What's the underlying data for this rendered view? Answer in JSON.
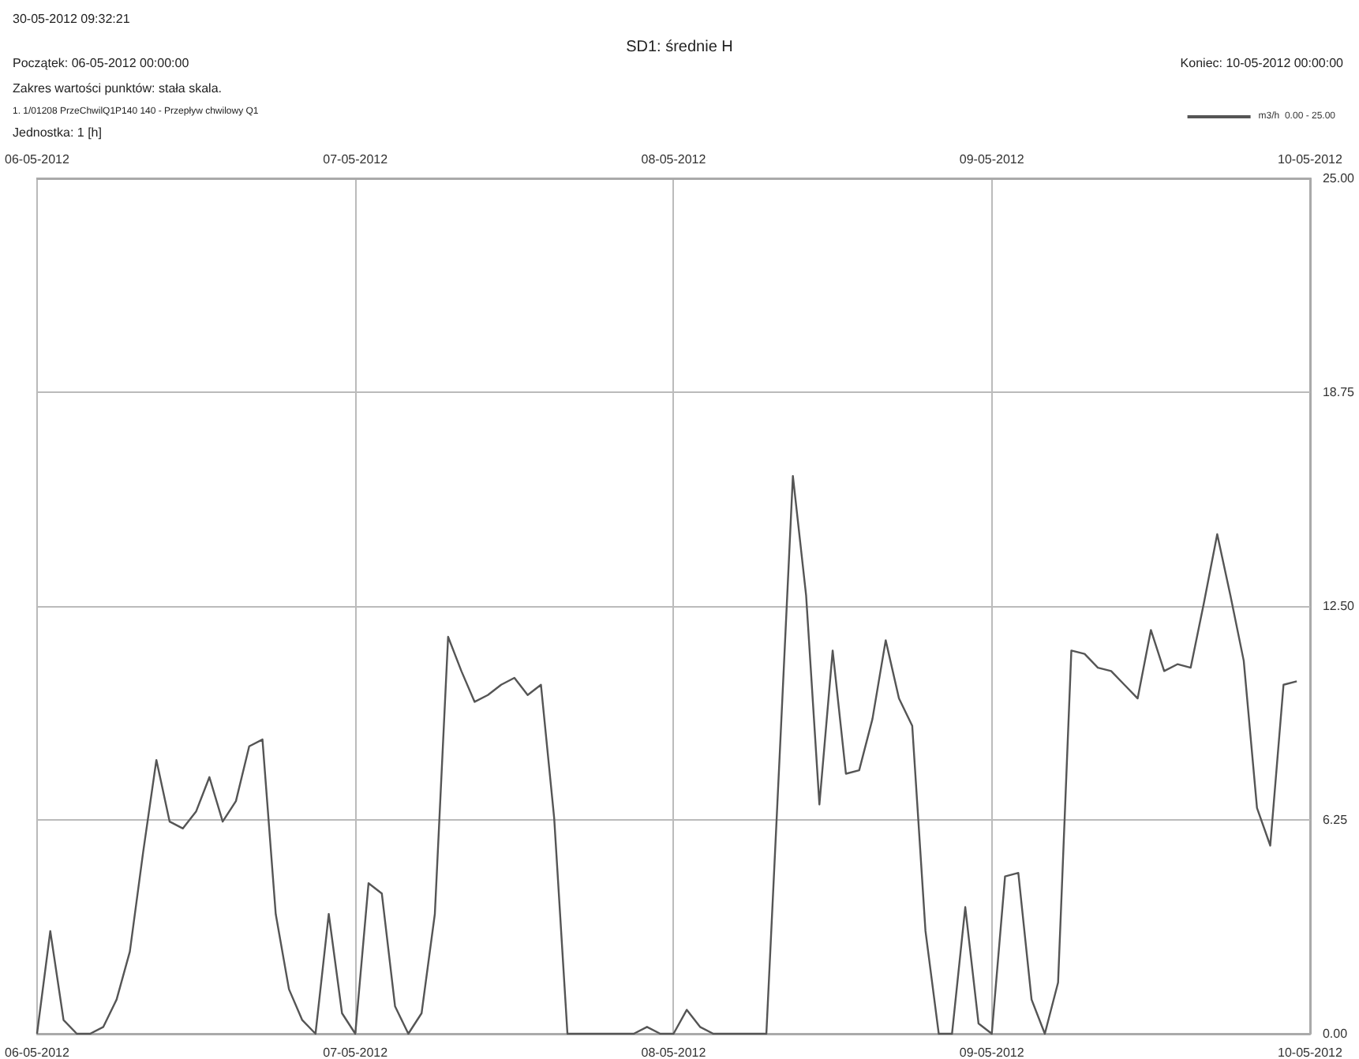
{
  "chart_data": {
    "type": "line",
    "title": "SD1: średnie H",
    "annotations": [
      "30-05-2012 09:32:21",
      "Początek: 06-05-2012 00:00:00",
      "Koniec: 10-05-2012 00:00:00",
      "Zakres wartości punktów: stała skala.",
      "1. 1/01208 PrzeChwilQ1P140 140 - Przepływ chwilowy Q1",
      "Jednostka: 1 [h]"
    ],
    "x": [
      "2012-05-06T00:00",
      "2012-05-06T01:00",
      "2012-05-06T02:00",
      "2012-05-06T03:00",
      "2012-05-06T04:00",
      "2012-05-06T05:00",
      "2012-05-06T06:00",
      "2012-05-06T07:00",
      "2012-05-06T08:00",
      "2012-05-06T09:00",
      "2012-05-06T10:00",
      "2012-05-06T11:00",
      "2012-05-06T12:00",
      "2012-05-06T13:00",
      "2012-05-06T14:00",
      "2012-05-06T15:00",
      "2012-05-06T16:00",
      "2012-05-06T17:00",
      "2012-05-06T18:00",
      "2012-05-06T19:00",
      "2012-05-06T20:00",
      "2012-05-06T21:00",
      "2012-05-06T22:00",
      "2012-05-06T23:00",
      "2012-05-07T00:00",
      "2012-05-07T01:00",
      "2012-05-07T02:00",
      "2012-05-07T03:00",
      "2012-05-07T04:00",
      "2012-05-07T05:00",
      "2012-05-07T06:00",
      "2012-05-07T07:00",
      "2012-05-07T08:00",
      "2012-05-07T09:00",
      "2012-05-07T10:00",
      "2012-05-07T11:00",
      "2012-05-07T12:00",
      "2012-05-07T13:00",
      "2012-05-07T14:00",
      "2012-05-07T15:00",
      "2012-05-07T16:00",
      "2012-05-07T17:00",
      "2012-05-07T18:00",
      "2012-05-07T19:00",
      "2012-05-07T20:00",
      "2012-05-07T21:00",
      "2012-05-07T22:00",
      "2012-05-07T23:00",
      "2012-05-08T00:00",
      "2012-05-08T01:00",
      "2012-05-08T02:00",
      "2012-05-08T03:00",
      "2012-05-08T04:00",
      "2012-05-08T05:00",
      "2012-05-08T06:00",
      "2012-05-08T07:00",
      "2012-05-08T08:00",
      "2012-05-08T09:00",
      "2012-05-08T10:00",
      "2012-05-08T11:00",
      "2012-05-08T12:00",
      "2012-05-08T13:00",
      "2012-05-08T14:00",
      "2012-05-08T15:00",
      "2012-05-08T16:00",
      "2012-05-08T17:00",
      "2012-05-08T18:00",
      "2012-05-08T19:00",
      "2012-05-08T20:00",
      "2012-05-08T21:00",
      "2012-05-08T22:00",
      "2012-05-08T23:00",
      "2012-05-09T00:00",
      "2012-05-09T01:00",
      "2012-05-09T02:00",
      "2012-05-09T03:00",
      "2012-05-09T04:00",
      "2012-05-09T05:00",
      "2012-05-09T06:00",
      "2012-05-09T07:00",
      "2012-05-09T08:00",
      "2012-05-09T09:00",
      "2012-05-09T10:00",
      "2012-05-09T11:00",
      "2012-05-09T12:00",
      "2012-05-09T13:00",
      "2012-05-09T14:00",
      "2012-05-09T15:00",
      "2012-05-09T16:00",
      "2012-05-09T17:00",
      "2012-05-09T18:00",
      "2012-05-09T19:00",
      "2012-05-09T20:00",
      "2012-05-09T21:00",
      "2012-05-09T22:00",
      "2012-05-09T23:00"
    ],
    "series": [
      {
        "name": "m3/h  0.00 - 25.00",
        "color": "#555555",
        "values": [
          0,
          3.0,
          0.4,
          0,
          0,
          0.2,
          1.0,
          2.4,
          5.3,
          8.0,
          6.2,
          6.0,
          6.5,
          7.5,
          6.2,
          6.8,
          8.4,
          8.6,
          3.5,
          1.3,
          0.4,
          0,
          3.5,
          0.6,
          0,
          4.4,
          4.1,
          0.8,
          0,
          0.6,
          3.5,
          11.6,
          10.6,
          9.7,
          9.9,
          10.2,
          10.4,
          9.9,
          10.2,
          6.3,
          0,
          0,
          0,
          0,
          0,
          0,
          0.2,
          0,
          0,
          0.7,
          0.2,
          0,
          0,
          0,
          0,
          0,
          8.1,
          16.3,
          12.8,
          6.7,
          11.2,
          7.6,
          7.7,
          9.2,
          11.5,
          9.8,
          9.0,
          3.0,
          0,
          0,
          3.7,
          0.3,
          0,
          4.6,
          4.7,
          1.0,
          0,
          1.5,
          11.2,
          11.1,
          10.7,
          10.6,
          10.2,
          9.8,
          11.8,
          10.6,
          10.8,
          10.7,
          12.6,
          14.6,
          12.8,
          10.9,
          6.6,
          5.5,
          10.2,
          10.3
        ]
      }
    ],
    "xlim": [
      "2012-05-06T00:00",
      "2012-05-10T00:00"
    ],
    "xticks": [
      {
        "value": "2012-05-06",
        "label": "06-05-2012"
      },
      {
        "value": "2012-05-07",
        "label": "07-05-2012"
      },
      {
        "value": "2012-05-08",
        "label": "08-05-2012"
      },
      {
        "value": "2012-05-09",
        "label": "09-05-2012"
      },
      {
        "value": "2012-05-10",
        "label": "10-05-2012"
      }
    ],
    "x2lim": [
      "2012-05-06T00:00",
      "2012-05-10T00:00"
    ],
    "x2ticks": [
      {
        "value": "2012-05-06",
        "label": "06-05-2012"
      },
      {
        "value": "2012-05-07",
        "label": "07-05-2012"
      },
      {
        "value": "2012-05-08",
        "label": "08-05-2012"
      },
      {
        "value": "2012-05-09",
        "label": "09-05-2012"
      },
      {
        "value": "2012-05-10",
        "label": "10-05-2012"
      }
    ],
    "ylim": [
      0,
      25
    ],
    "yticks": [
      {
        "value": 0,
        "label": "0.00"
      },
      {
        "value": 6.25,
        "label": "6.25"
      },
      {
        "value": 12.5,
        "label": "12.50"
      },
      {
        "value": 18.75,
        "label": "18.75"
      },
      {
        "value": 25,
        "label": "25.00"
      }
    ],
    "grid": true,
    "legend": "top right",
    "marker": "none",
    "line_style": "solid"
  }
}
